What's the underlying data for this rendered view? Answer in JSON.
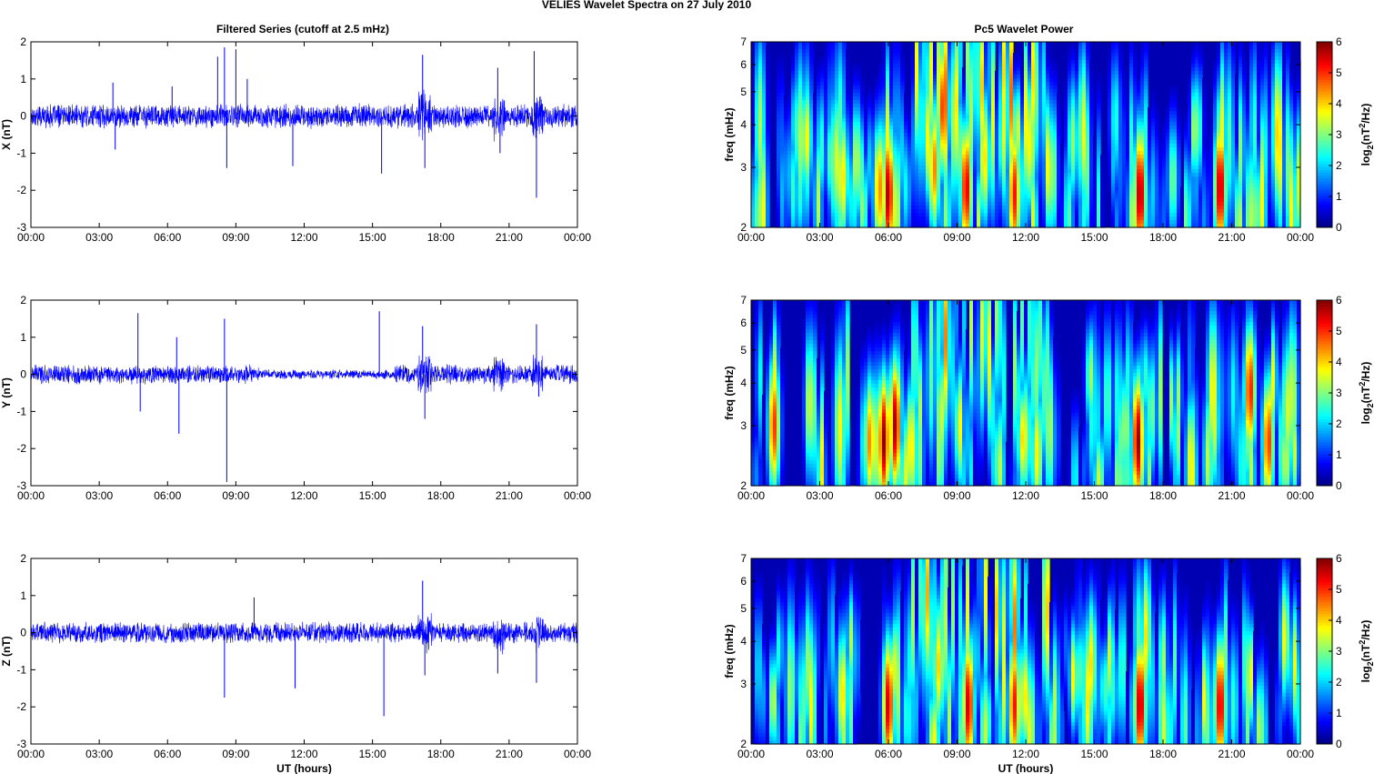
{
  "figure_title": "VELIES Wavelet Spectra on 27 July      2010",
  "left_title": "Filtered Series (cutoff at 2.5 mHz)",
  "right_title": "Pc5 Wavelet Power",
  "xlabel": "UT (hours)",
  "freq_ylabel": "freq (mHz)",
  "colorbar_label": {
    "base": "log",
    "sub": "2",
    "mid": "(nT",
    "sup": "2",
    "end": "/Hz)"
  },
  "colors": {
    "trace": "#0000ff",
    "background_low": "#00008f",
    "axis": "#000000"
  },
  "chart_data": [
    {
      "type": "line",
      "xlabel": "",
      "ylabel": "X (nT)",
      "x_ticks": [
        "00:00",
        "03:00",
        "06:00",
        "09:00",
        "12:00",
        "15:00",
        "18:00",
        "21:00",
        "00:00"
      ],
      "xlim": [
        0,
        24
      ],
      "ylim": [
        -3,
        2
      ],
      "y_ticks": [
        "-3",
        "-2",
        "-1",
        "0",
        "1",
        "2"
      ],
      "baseline_amplitude": 0.25,
      "spikes": [
        {
          "x": 3.6,
          "y": 0.9
        },
        {
          "x": 3.7,
          "y": -0.9
        },
        {
          "x": 6.2,
          "y": 0.8
        },
        {
          "x": 8.2,
          "y": 1.6
        },
        {
          "x": 8.5,
          "y": 1.85
        },
        {
          "x": 8.6,
          "y": -1.4
        },
        {
          "x": 9.0,
          "y": 1.8
        },
        {
          "x": 9.5,
          "y": 1.0
        },
        {
          "x": 11.5,
          "y": -1.35
        },
        {
          "x": 15.4,
          "y": -1.55
        },
        {
          "x": 17.2,
          "y": 1.65
        },
        {
          "x": 17.3,
          "y": -1.4
        },
        {
          "x": 20.5,
          "y": 1.3
        },
        {
          "x": 20.6,
          "y": -1.0
        },
        {
          "x": 22.1,
          "y": 1.75
        },
        {
          "x": 22.2,
          "y": -2.2
        }
      ]
    },
    {
      "type": "line",
      "xlabel": "",
      "ylabel": "Y (nT)",
      "x_ticks": [
        "00:00",
        "03:00",
        "06:00",
        "09:00",
        "12:00",
        "15:00",
        "18:00",
        "21:00",
        "00:00"
      ],
      "xlim": [
        0,
        24
      ],
      "ylim": [
        -3,
        2
      ],
      "y_ticks": [
        "-3",
        "-2",
        "-1",
        "0",
        "1",
        "2"
      ],
      "baseline_amplitude": 0.2,
      "spikes": [
        {
          "x": 4.7,
          "y": 1.65
        },
        {
          "x": 4.8,
          "y": -1.0
        },
        {
          "x": 6.4,
          "y": 1.0
        },
        {
          "x": 6.5,
          "y": -1.6
        },
        {
          "x": 8.5,
          "y": 1.5
        },
        {
          "x": 8.6,
          "y": -2.9
        },
        {
          "x": 15.3,
          "y": 1.7
        },
        {
          "x": 17.2,
          "y": 1.3
        },
        {
          "x": 17.3,
          "y": -1.2
        },
        {
          "x": 22.2,
          "y": 1.35
        },
        {
          "x": 22.3,
          "y": -0.6
        }
      ]
    },
    {
      "type": "line",
      "xlabel": "UT (hours)",
      "ylabel": "Z (nT)",
      "x_ticks": [
        "00:00",
        "03:00",
        "06:00",
        "09:00",
        "12:00",
        "15:00",
        "18:00",
        "21:00",
        "00:00"
      ],
      "xlim": [
        0,
        24
      ],
      "ylim": [
        -3,
        2
      ],
      "y_ticks": [
        "-3",
        "-2",
        "-1",
        "0",
        "1",
        "2"
      ],
      "baseline_amplitude": 0.22,
      "spikes": [
        {
          "x": 8.5,
          "y": -1.75
        },
        {
          "x": 9.8,
          "y": 0.95
        },
        {
          "x": 11.6,
          "y": -1.5
        },
        {
          "x": 15.5,
          "y": -2.25
        },
        {
          "x": 17.2,
          "y": 1.4
        },
        {
          "x": 17.3,
          "y": -1.15
        },
        {
          "x": 20.5,
          "y": -1.1
        },
        {
          "x": 22.2,
          "y": -1.35
        }
      ]
    },
    {
      "type": "heatmap",
      "title": "",
      "ylabel": "freq (mHz)",
      "xlim": [
        0,
        24
      ],
      "ylim": [
        2,
        7
      ],
      "y_scale": "log",
      "y_ticks": [
        "2",
        "3",
        "4",
        "5",
        "6",
        "7"
      ],
      "x_ticks": [
        "00:00",
        "03:00",
        "06:00",
        "09:00",
        "12:00",
        "15:00",
        "18:00",
        "21:00",
        "00:00"
      ],
      "colorbar": {
        "range": [
          0,
          6
        ],
        "ticks": [
          "0",
          "1",
          "2",
          "3",
          "4",
          "5",
          "6"
        ],
        "colormap": "jet"
      },
      "blobs": [
        {
          "t": 4.0,
          "f": 2.8,
          "p": 4.0
        },
        {
          "t": 5.6,
          "f": 2.6,
          "p": 4.5
        },
        {
          "t": 6.0,
          "f": 2.5,
          "p": 5.8
        },
        {
          "t": 8.0,
          "f": 3.0,
          "p": 4.5
        },
        {
          "t": 8.4,
          "f": 4.5,
          "p": 5.0
        },
        {
          "t": 9.4,
          "f": 2.6,
          "p": 5.5
        },
        {
          "t": 10.2,
          "f": 3.2,
          "p": 4.0
        },
        {
          "t": 11.5,
          "f": 2.5,
          "p": 5.2
        },
        {
          "t": 12.2,
          "f": 3.5,
          "p": 3.8
        },
        {
          "t": 17.0,
          "f": 2.5,
          "p": 5.9
        },
        {
          "t": 20.5,
          "f": 2.6,
          "p": 5.8
        }
      ]
    },
    {
      "type": "heatmap",
      "title": "",
      "ylabel": "freq (mHz)",
      "xlim": [
        0,
        24
      ],
      "ylim": [
        2,
        7
      ],
      "y_scale": "log",
      "y_ticks": [
        "2",
        "3",
        "4",
        "5",
        "6",
        "7"
      ],
      "x_ticks": [
        "00:00",
        "03:00",
        "06:00",
        "09:00",
        "12:00",
        "15:00",
        "18:00",
        "21:00",
        "00:00"
      ],
      "colorbar": {
        "range": [
          0,
          6
        ],
        "ticks": [
          "0",
          "1",
          "2",
          "3",
          "4",
          "5",
          "6"
        ],
        "colormap": "jet"
      },
      "blobs": [
        {
          "t": 1.0,
          "f": 3.0,
          "p": 5.0
        },
        {
          "t": 5.2,
          "f": 2.7,
          "p": 4.5
        },
        {
          "t": 5.8,
          "f": 2.7,
          "p": 5.9
        },
        {
          "t": 6.3,
          "f": 3.0,
          "p": 5.8
        },
        {
          "t": 7.0,
          "f": 2.6,
          "p": 4.0
        },
        {
          "t": 8.3,
          "f": 3.2,
          "p": 3.5
        },
        {
          "t": 12.0,
          "f": 2.8,
          "p": 3.5
        },
        {
          "t": 16.9,
          "f": 2.7,
          "p": 5.9
        },
        {
          "t": 21.8,
          "f": 3.8,
          "p": 5.2
        },
        {
          "t": 22.6,
          "f": 2.7,
          "p": 5.0
        }
      ]
    },
    {
      "type": "heatmap",
      "title": "",
      "xlabel": "UT (hours)",
      "ylabel": "freq (mHz)",
      "xlim": [
        0,
        24
      ],
      "ylim": [
        2,
        7
      ],
      "y_scale": "log",
      "y_ticks": [
        "2",
        "3",
        "4",
        "5",
        "6",
        "7"
      ],
      "x_ticks": [
        "00:00",
        "03:00",
        "06:00",
        "09:00",
        "12:00",
        "15:00",
        "18:00",
        "21:00",
        "00:00"
      ],
      "colorbar": {
        "range": [
          0,
          6
        ],
        "ticks": [
          "0",
          "1",
          "2",
          "3",
          "4",
          "5",
          "6"
        ],
        "colormap": "jet"
      },
      "blobs": [
        {
          "t": 4.0,
          "f": 2.8,
          "p": 4.0
        },
        {
          "t": 6.0,
          "f": 2.6,
          "p": 5.6
        },
        {
          "t": 8.2,
          "f": 3.4,
          "p": 4.0
        },
        {
          "t": 9.5,
          "f": 2.6,
          "p": 5.6
        },
        {
          "t": 11.5,
          "f": 2.6,
          "p": 5.2
        },
        {
          "t": 17.0,
          "f": 2.6,
          "p": 5.8
        },
        {
          "t": 20.5,
          "f": 2.6,
          "p": 5.6
        }
      ]
    }
  ]
}
